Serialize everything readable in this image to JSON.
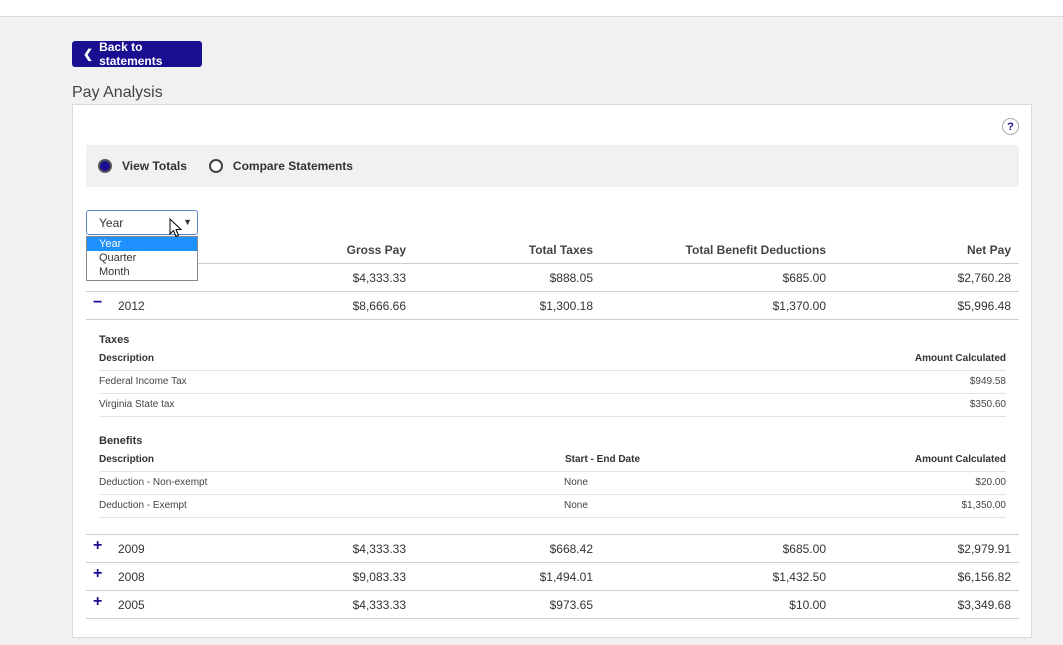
{
  "back_button": {
    "label": "Back to statements"
  },
  "page_title": "Pay Analysis",
  "help": "?",
  "view_mode": {
    "options": [
      "View Totals",
      "Compare Statements"
    ],
    "selected": "View Totals"
  },
  "period_select": {
    "value": "Year",
    "options": [
      "Year",
      "Quarter",
      "Month"
    ],
    "highlighted": "Year"
  },
  "table": {
    "headers": [
      "Gross Pay",
      "Total Taxes",
      "Total Benefit Deductions",
      "Net Pay"
    ],
    "rows": [
      {
        "year": "",
        "gross": "$4,333.33",
        "taxes": "$888.05",
        "benefits": "$685.00",
        "net": "$2,760.28",
        "sign": ""
      },
      {
        "year": "2012",
        "gross": "$8,666.66",
        "taxes": "$1,300.18",
        "benefits": "$1,370.00",
        "net": "$5,996.48",
        "sign": "−"
      },
      {
        "year": "2009",
        "gross": "$4,333.33",
        "taxes": "$668.42",
        "benefits": "$685.00",
        "net": "$2,979.91",
        "sign": "+"
      },
      {
        "year": "2008",
        "gross": "$9,083.33",
        "taxes": "$1,494.01",
        "benefits": "$1,432.50",
        "net": "$6,156.82",
        "sign": "+"
      },
      {
        "year": "2005",
        "gross": "$4,333.33",
        "taxes": "$973.65",
        "benefits": "$10.00",
        "net": "$3,349.68",
        "sign": "+"
      }
    ]
  },
  "detail": {
    "taxes": {
      "title": "Taxes",
      "desc_header": "Description",
      "amount_header": "Amount Calculated",
      "items": [
        {
          "desc": "Federal Income Tax",
          "amount": "$949.58"
        },
        {
          "desc": "Virginia State tax",
          "amount": "$350.60"
        }
      ]
    },
    "benefits": {
      "title": "Benefits",
      "desc_header": "Description",
      "date_header": "Start - End Date",
      "amount_header": "Amount Calculated",
      "items": [
        {
          "desc": "Deduction - Non-exempt",
          "date": "None",
          "amount": "$20.00"
        },
        {
          "desc": "Deduction - Exempt",
          "date": "None",
          "amount": "$1,350.00"
        }
      ]
    }
  },
  "colors": {
    "accent": "#1a0f91",
    "highlight": "#1e90ff"
  }
}
